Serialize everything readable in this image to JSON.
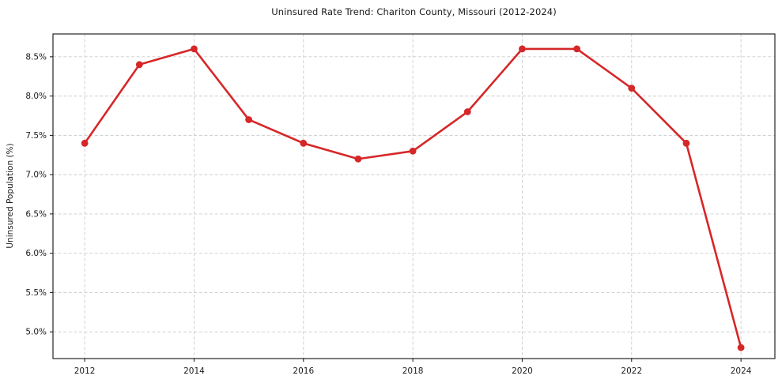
{
  "chart_data": {
    "type": "line",
    "title": "Uninsured Rate Trend: Chariton County, Missouri (2012-2024)",
    "xlabel": "",
    "ylabel": "Uninsured Population (%)",
    "x": [
      2012,
      2013,
      2014,
      2015,
      2016,
      2017,
      2018,
      2019,
      2020,
      2021,
      2022,
      2023,
      2024
    ],
    "values": [
      7.4,
      8.4,
      8.6,
      7.7,
      7.4,
      7.2,
      7.3,
      7.8,
      8.6,
      8.6,
      8.1,
      7.4,
      4.8
    ],
    "xticks": [
      2012,
      2014,
      2016,
      2018,
      2020,
      2022,
      2024
    ],
    "ytick_values": [
      5.0,
      5.5,
      6.0,
      6.5,
      7.0,
      7.5,
      8.0,
      8.5
    ],
    "ytick_labels": [
      "5.0%",
      "5.5%",
      "6.0%",
      "6.5%",
      "7.0%",
      "7.5%",
      "8.0%",
      "8.5%"
    ],
    "xlim": [
      2011.42,
      2024.62
    ],
    "ylim": [
      4.66,
      8.79
    ],
    "grid": true,
    "legend": "none",
    "line_color": "#d62728",
    "marker": "circle",
    "grid_color": "#cccccc",
    "spine_color": "#111111",
    "tick_label_color": "#1a1a1a"
  }
}
